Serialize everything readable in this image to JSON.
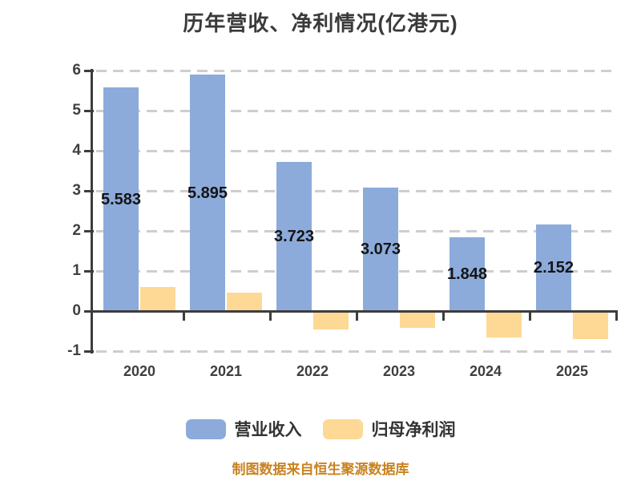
{
  "page": {
    "background": "#ffffff"
  },
  "title": {
    "text": "历年营收、净利情况(亿港元)",
    "color": "#3a3a3a"
  },
  "caption": {
    "text": "制图数据来自恒生聚源数据库",
    "color": "#c8821e"
  },
  "colors": {
    "axis": "#3d3d3d",
    "gridline": "#cecece",
    "value_label": "#151515",
    "tick_label": "#3f3f3f",
    "revenue_bar": "#8cabdb",
    "net_profit_bar": "#fed995"
  },
  "chart_data": {
    "type": "bar",
    "title": "历年营收、净利情况(亿港元)",
    "categories": [
      "2020",
      "2021",
      "2022",
      "2023",
      "2024",
      "2025"
    ],
    "series": [
      {
        "name": "营业收入",
        "color": "#8cabdb",
        "values": [
          5.583,
          5.895,
          3.723,
          3.073,
          1.848,
          2.152
        ],
        "data_labels": [
          "5.583",
          "5.895",
          "3.723",
          "3.073",
          "1.848",
          "2.152"
        ]
      },
      {
        "name": "归母净利润",
        "color": "#fed995",
        "values": [
          0.6,
          0.46,
          -0.46,
          -0.42,
          -0.66,
          -0.7
        ]
      }
    ],
    "ylim": [
      -1,
      6
    ],
    "yticks": [
      6,
      5,
      4,
      3,
      2,
      1,
      0,
      -1
    ],
    "grid": {
      "horizontal": true,
      "style": "dashed"
    },
    "legend_position": "bottom"
  }
}
